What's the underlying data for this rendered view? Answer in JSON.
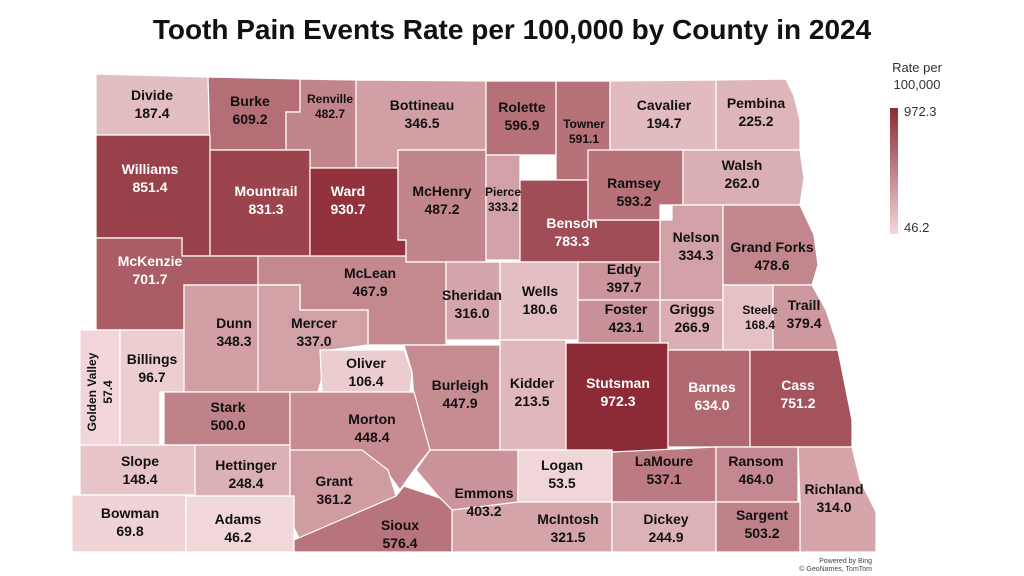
{
  "title": "Tooth Pain Events Rate per 100,000 by County in 2024",
  "legend": {
    "title_line1": "Rate per",
    "title_line2": "100,000",
    "max_label": "972.3",
    "min_label": "46.2",
    "min_color": "#f2d7da",
    "max_color": "#8c2a35"
  },
  "credit": {
    "line1": "Powered by Bing",
    "line2": "© GeoNames, TomTom"
  },
  "colors": {
    "border": "#ffffff",
    "dark_text": "#111111",
    "light_text": "#ffffff"
  },
  "counties": [
    {
      "id": "divide",
      "name": "Divide",
      "value": "187.4",
      "rate": 187.4
    },
    {
      "id": "burke",
      "name": "Burke",
      "value": "609.2",
      "rate": 609.2
    },
    {
      "id": "renville",
      "name": "Renville",
      "value": "482.7",
      "rate": 482.7
    },
    {
      "id": "bottineau",
      "name": "Bottineau",
      "value": "346.5",
      "rate": 346.5
    },
    {
      "id": "rolette",
      "name": "Rolette",
      "value": "596.9",
      "rate": 596.9
    },
    {
      "id": "towner",
      "name": "Towner",
      "value": "591.1",
      "rate": 591.1
    },
    {
      "id": "cavalier",
      "name": "Cavalier",
      "value": "194.7",
      "rate": 194.7
    },
    {
      "id": "pembina",
      "name": "Pembina",
      "value": "225.2",
      "rate": 225.2
    },
    {
      "id": "williams",
      "name": "Williams",
      "value": "851.4",
      "rate": 851.4
    },
    {
      "id": "mountrail",
      "name": "Mountrail",
      "value": "831.3",
      "rate": 831.3
    },
    {
      "id": "ward",
      "name": "Ward",
      "value": "930.7",
      "rate": 930.7
    },
    {
      "id": "mchenry",
      "name": "McHenry",
      "value": "487.2",
      "rate": 487.2
    },
    {
      "id": "pierce",
      "name": "Pierce",
      "value": "333.2",
      "rate": 333.2
    },
    {
      "id": "benson",
      "name": "Benson",
      "value": "783.3",
      "rate": 783.3
    },
    {
      "id": "ramsey",
      "name": "Ramsey",
      "value": "593.2",
      "rate": 593.2
    },
    {
      "id": "walsh",
      "name": "Walsh",
      "value": "262.0",
      "rate": 262.0
    },
    {
      "id": "nelson",
      "name": "Nelson",
      "value": "334.3",
      "rate": 334.3
    },
    {
      "id": "grandforks",
      "name": "Grand Forks",
      "value": "478.6",
      "rate": 478.6
    },
    {
      "id": "mckenzie",
      "name": "McKenzie",
      "value": "701.7",
      "rate": 701.7
    },
    {
      "id": "mclean",
      "name": "McLean",
      "value": "467.9",
      "rate": 467.9
    },
    {
      "id": "sheridan",
      "name": "Sheridan",
      "value": "316.0",
      "rate": 316.0
    },
    {
      "id": "wells",
      "name": "Wells",
      "value": "180.6",
      "rate": 180.6
    },
    {
      "id": "eddy",
      "name": "Eddy",
      "value": "397.7",
      "rate": 397.7
    },
    {
      "id": "foster",
      "name": "Foster",
      "value": "423.1",
      "rate": 423.1
    },
    {
      "id": "griggs",
      "name": "Griggs",
      "value": "266.9",
      "rate": 266.9
    },
    {
      "id": "steele",
      "name": "Steele",
      "value": "168.4",
      "rate": 168.4
    },
    {
      "id": "traill",
      "name": "Traill",
      "value": "379.4",
      "rate": 379.4
    },
    {
      "id": "dunn",
      "name": "Dunn",
      "value": "348.3",
      "rate": 348.3
    },
    {
      "id": "mercer",
      "name": "Mercer",
      "value": "337.0",
      "rate": 337.0
    },
    {
      "id": "oliver",
      "name": "Oliver",
      "value": "106.4",
      "rate": 106.4
    },
    {
      "id": "goldenvalley",
      "name": "Golden Valley",
      "value": "57.4",
      "rate": 57.4
    },
    {
      "id": "billings",
      "name": "Billings",
      "value": "96.7",
      "rate": 96.7
    },
    {
      "id": "burleigh",
      "name": "Burleigh",
      "value": "447.9",
      "rate": 447.9
    },
    {
      "id": "kidder",
      "name": "Kidder",
      "value": "213.5",
      "rate": 213.5
    },
    {
      "id": "stutsman",
      "name": "Stutsman",
      "value": "972.3",
      "rate": 972.3
    },
    {
      "id": "barnes",
      "name": "Barnes",
      "value": "634.0",
      "rate": 634.0
    },
    {
      "id": "cass",
      "name": "Cass",
      "value": "751.2",
      "rate": 751.2
    },
    {
      "id": "stark",
      "name": "Stark",
      "value": "500.0",
      "rate": 500.0
    },
    {
      "id": "morton",
      "name": "Morton",
      "value": "448.4",
      "rate": 448.4
    },
    {
      "id": "slope",
      "name": "Slope",
      "value": "148.4",
      "rate": 148.4
    },
    {
      "id": "hettinger",
      "name": "Hettinger",
      "value": "248.4",
      "rate": 248.4
    },
    {
      "id": "grant",
      "name": "Grant",
      "value": "361.2",
      "rate": 361.2
    },
    {
      "id": "emmons",
      "name": "Emmons",
      "value": "403.2",
      "rate": 403.2
    },
    {
      "id": "logan",
      "name": "Logan",
      "value": "53.5",
      "rate": 53.5
    },
    {
      "id": "lamoure",
      "name": "LaMoure",
      "value": "537.1",
      "rate": 537.1
    },
    {
      "id": "ransom",
      "name": "Ransom",
      "value": "464.0",
      "rate": 464.0
    },
    {
      "id": "richland",
      "name": "Richland",
      "value": "314.0",
      "rate": 314.0
    },
    {
      "id": "bowman",
      "name": "Bowman",
      "value": "69.8",
      "rate": 69.8
    },
    {
      "id": "adams",
      "name": "Adams",
      "value": "46.2",
      "rate": 46.2
    },
    {
      "id": "sioux",
      "name": "Sioux",
      "value": "576.4",
      "rate": 576.4
    },
    {
      "id": "mcintosh",
      "name": "McIntosh",
      "value": "321.5",
      "rate": 321.5
    },
    {
      "id": "dickey",
      "name": "Dickey",
      "value": "244.9",
      "rate": 244.9
    },
    {
      "id": "sargent",
      "name": "Sargent",
      "value": "503.2",
      "rate": 503.2
    }
  ]
}
